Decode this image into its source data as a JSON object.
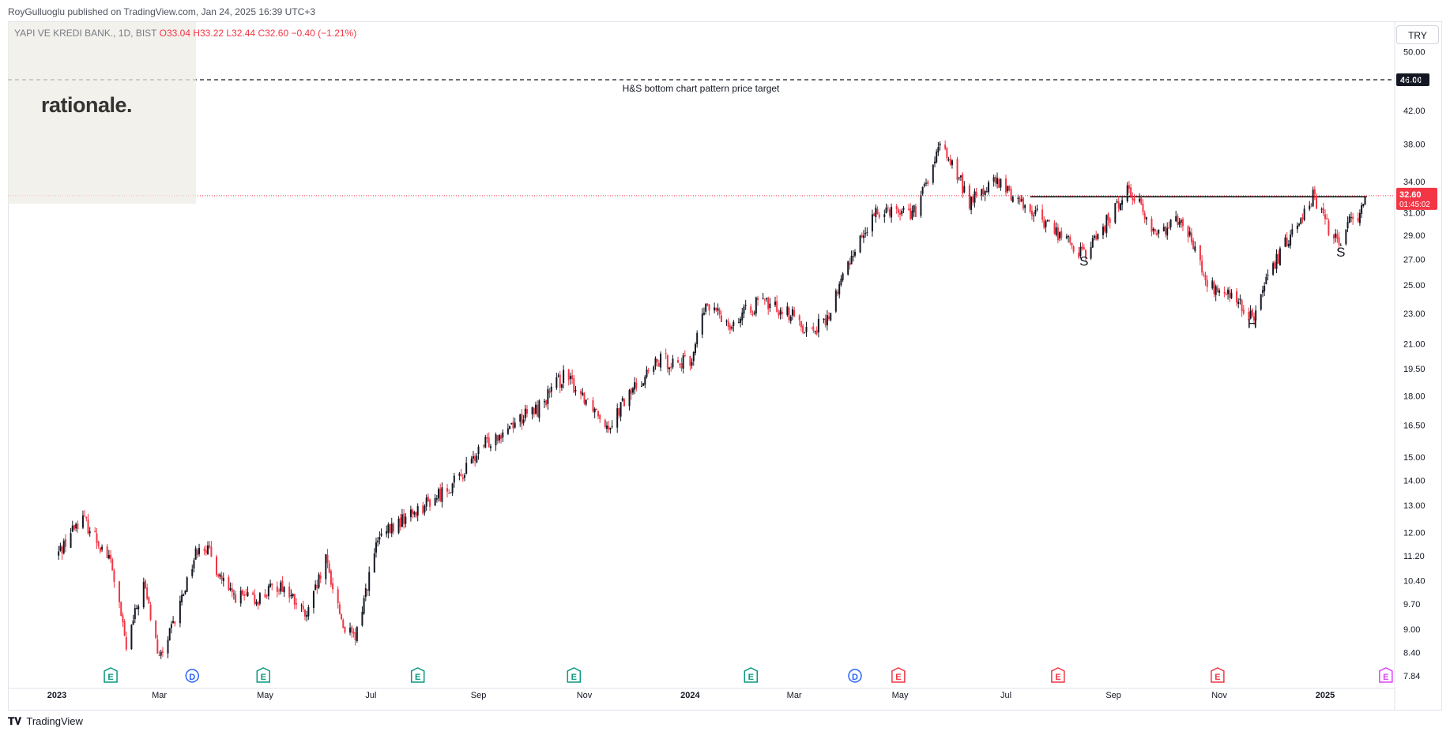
{
  "header": {
    "publisher_line": "RoyGulluoglu published on TradingView.com, Jan 24, 2025 16:39 UTC+3",
    "symbol": "YAPI VE KREDI BANK., 1D, BIST",
    "open": "O33.04",
    "high": "H33.22",
    "low": "L32.44",
    "close": "C32.60",
    "change": "−0.40 (−1.21%)"
  },
  "logo": {
    "text": "rationale."
  },
  "currency_button": "TRY",
  "footer": {
    "brand": "TradingView",
    "icon": "tradingview-logo-icon"
  },
  "colors": {
    "up": "#131722",
    "down": "#f23645",
    "target_line": "#131722",
    "neckline": "#000000",
    "price_line": "#f23645",
    "earnings": "#089981",
    "earnings_red": "#f23645",
    "dividend": "#2962ff",
    "earnings_future": "#e040fb"
  },
  "chart_data": {
    "type": "candlestick",
    "y_scale": "log",
    "y_ticks": [
      "50.00",
      "46.00",
      "42.00",
      "38.00",
      "34.00",
      "31.00",
      "29.00",
      "27.00",
      "25.00",
      "23.00",
      "21.00",
      "19.50",
      "18.00",
      "16.50",
      "15.00",
      "14.00",
      "13.00",
      "12.00",
      "11.20",
      "10.40",
      "9.70",
      "9.00",
      "8.40",
      "7.84"
    ],
    "x_ticks": [
      "2023",
      "Mar",
      "May",
      "Jul",
      "Sep",
      "Nov",
      "2024",
      "Mar",
      "May",
      "Jul",
      "Sep",
      "Nov",
      "2025"
    ],
    "price_path_approx": [
      [
        "2023-01-01",
        11.2
      ],
      [
        "2023-01-15",
        12.6
      ],
      [
        "2023-02-01",
        11.0
      ],
      [
        "2023-02-10",
        8.5
      ],
      [
        "2023-02-20",
        10.3
      ],
      [
        "2023-03-01",
        8.2
      ],
      [
        "2023-03-10",
        9.2
      ],
      [
        "2023-03-25",
        11.8
      ],
      [
        "2023-04-10",
        10.0
      ],
      [
        "2023-04-25",
        9.8
      ],
      [
        "2023-05-10",
        10.3
      ],
      [
        "2023-05-25",
        9.3
      ],
      [
        "2023-06-05",
        11.0
      ],
      [
        "2023-06-15",
        9.1
      ],
      [
        "2023-06-22",
        8.7
      ],
      [
        "2023-07-05",
        11.7
      ],
      [
        "2023-07-20",
        12.5
      ],
      [
        "2023-08-05",
        13.2
      ],
      [
        "2023-08-20",
        14.0
      ],
      [
        "2023-09-05",
        15.6
      ],
      [
        "2023-09-20",
        16.6
      ],
      [
        "2023-10-05",
        17.3
      ],
      [
        "2023-10-20",
        19.1
      ],
      [
        "2023-11-05",
        17.6
      ],
      [
        "2023-11-15",
        16.5
      ],
      [
        "2023-12-01",
        18.6
      ],
      [
        "2023-12-15",
        20.0
      ],
      [
        "2024-01-01",
        19.8
      ],
      [
        "2024-01-10",
        23.5
      ],
      [
        "2024-01-25",
        22.3
      ],
      [
        "2024-02-10",
        23.8
      ],
      [
        "2024-02-25",
        23.2
      ],
      [
        "2024-03-10",
        21.8
      ],
      [
        "2024-03-20",
        22.5
      ],
      [
        "2024-04-05",
        28.0
      ],
      [
        "2024-04-20",
        31.5
      ],
      [
        "2024-05-10",
        31.0
      ],
      [
        "2024-05-25",
        38.0
      ],
      [
        "2024-06-10",
        32.0
      ],
      [
        "2024-06-25",
        34.0
      ],
      [
        "2024-07-10",
        32.0
      ],
      [
        "2024-07-25",
        30.0
      ],
      [
        "2024-08-15",
        27.3
      ],
      [
        "2024-09-01",
        31.0
      ],
      [
        "2024-09-10",
        33.5
      ],
      [
        "2024-09-25",
        29.0
      ],
      [
        "2024-10-10",
        30.8
      ],
      [
        "2024-10-25",
        25.0
      ],
      [
        "2024-11-10",
        24.0
      ],
      [
        "2024-11-20",
        22.6
      ],
      [
        "2024-12-01",
        26.0
      ],
      [
        "2024-12-15",
        30.0
      ],
      [
        "2024-12-25",
        32.5
      ],
      [
        "2025-01-05",
        29.0
      ],
      [
        "2025-01-10",
        28.0
      ],
      [
        "2025-01-15",
        31.0
      ],
      [
        "2025-01-20",
        30.5
      ],
      [
        "2025-01-24",
        32.6
      ]
    ],
    "last_price": {
      "value": "32.60",
      "countdown": "01:45:02"
    },
    "horizontal_lines": [
      {
        "name": "target",
        "price": 46.0,
        "label": "46.00",
        "annotation": "H&S bottom chart pattern price target",
        "style": "dashed"
      },
      {
        "name": "neckline",
        "price": 32.5,
        "style": "solid"
      }
    ],
    "pattern_labels": [
      {
        "text": "S",
        "date": "2024-08-15",
        "price": 26.5
      },
      {
        "text": "H",
        "date": "2024-11-20",
        "price": 22.0
      },
      {
        "text": "S",
        "date": "2025-01-10",
        "price": 27.2
      }
    ],
    "events": [
      {
        "type": "E",
        "date": "2023-02-01",
        "color": "earnings"
      },
      {
        "type": "D",
        "date": "2023-03-20",
        "color": "dividend"
      },
      {
        "type": "E",
        "date": "2023-04-30",
        "color": "earnings"
      },
      {
        "type": "E",
        "date": "2023-07-28",
        "color": "earnings"
      },
      {
        "type": "E",
        "date": "2023-10-26",
        "color": "earnings"
      },
      {
        "type": "E",
        "date": "2024-02-05",
        "color": "earnings"
      },
      {
        "type": "D",
        "date": "2024-04-05",
        "color": "dividend"
      },
      {
        "type": "E",
        "date": "2024-04-30",
        "color": "earnings_red"
      },
      {
        "type": "E",
        "date": "2024-07-31",
        "color": "earnings_red"
      },
      {
        "type": "E",
        "date": "2024-10-31",
        "color": "earnings_red"
      },
      {
        "type": "E",
        "date": "2025-02-05",
        "color": "earnings_future"
      }
    ]
  }
}
